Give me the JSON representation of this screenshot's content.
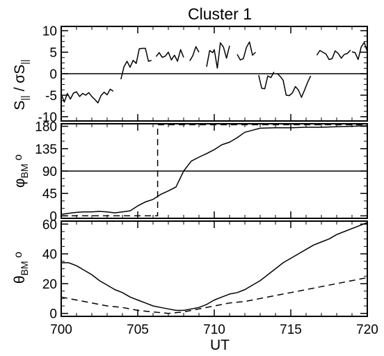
{
  "figure": {
    "title": "Cluster 1",
    "xlabel": "UT"
  },
  "chart_data": [
    {
      "type": "line",
      "panel": "top",
      "ylabel_parts": [
        "S",
        "||",
        " / σS",
        "||"
      ],
      "xlim": [
        700,
        720
      ],
      "ylim": [
        -11,
        11
      ],
      "yticks": [
        10,
        5,
        0,
        -5,
        -10
      ],
      "xticks": [],
      "series": [
        {
          "style": "solid",
          "segments": [
            [
              [
                700.0,
                -4.7
              ],
              [
                700.2,
                -6.6
              ],
              [
                700.4,
                -4.6
              ],
              [
                700.6,
                -5.9
              ],
              [
                700.8,
                -4.5
              ],
              [
                701.0,
                -4.2
              ],
              [
                701.2,
                -5.3
              ],
              [
                701.4,
                -4.6
              ],
              [
                701.6,
                -5.0
              ],
              [
                701.8,
                -4.4
              ],
              [
                702.0,
                -5.3
              ],
              [
                702.2,
                -6.0
              ],
              [
                702.4,
                -6.8
              ],
              [
                702.6,
                -5.1
              ],
              [
                702.8,
                -4.3
              ],
              [
                703.0,
                -4.9
              ],
              [
                703.2,
                -3.6
              ],
              [
                703.4,
                -4.1
              ]
            ],
            [
              [
                703.9,
                -1.3
              ],
              [
                704.1,
                1.6
              ],
              [
                704.3,
                2.9
              ],
              [
                704.5,
                1.5
              ],
              [
                704.7,
                3.1
              ],
              [
                704.9,
                2.4
              ],
              [
                705.1,
                5.8
              ],
              [
                705.3,
                5.9
              ],
              [
                705.5,
                5.9
              ],
              [
                705.7,
                2.9
              ],
              [
                705.9,
                3.1
              ]
            ],
            [
              [
                706.2,
                4.0
              ],
              [
                706.4,
                4.9
              ],
              [
                706.6,
                3.8
              ],
              [
                706.8,
                4.1
              ],
              [
                707.0,
                5.0
              ],
              [
                707.2,
                3.2
              ],
              [
                707.4,
                4.3
              ],
              [
                707.6,
                2.9
              ],
              [
                707.8,
                5.6
              ],
              [
                708.0,
                3.8
              ]
            ],
            [
              [
                708.4,
                3.0
              ],
              [
                708.6,
                4.2
              ],
              [
                708.8,
                6.3
              ],
              [
                709.0,
                5.0
              ]
            ],
            [
              [
                709.5,
                1.6
              ],
              [
                709.7,
                5.4
              ],
              [
                709.9,
                4.9
              ],
              [
                710.0,
                5.6
              ],
              [
                710.2,
                1.3
              ],
              [
                710.4,
                7.2
              ],
              [
                710.6,
                6.2
              ],
              [
                710.8,
                3.6
              ],
              [
                711.0,
                6.5
              ]
            ],
            [
              [
                711.5,
                4.5
              ],
              [
                711.7,
                3.2
              ],
              [
                711.9,
                3.5
              ],
              [
                712.1,
                6.1
              ],
              [
                712.3,
                7.4
              ],
              [
                712.5,
                4.3
              ],
              [
                712.7,
                5.0
              ]
            ],
            [
              [
                712.9,
                -0.3
              ],
              [
                713.1,
                -3.4
              ],
              [
                713.3,
                -3.5
              ],
              [
                713.5,
                -0.5
              ],
              [
                713.7,
                -0.9
              ],
              [
                713.9,
                0.4
              ]
            ],
            [
              [
                714.1,
                0.1
              ],
              [
                714.3,
                -0.6
              ],
              [
                714.5,
                -1.5
              ],
              [
                714.7,
                -5.0
              ],
              [
                714.9,
                -5.1
              ],
              [
                715.1,
                -4.5
              ],
              [
                715.3,
                -3.0
              ],
              [
                715.5,
                -3.8
              ],
              [
                715.7,
                -5.5
              ],
              [
                715.9,
                -3.8
              ],
              [
                716.1,
                -2.0
              ],
              [
                716.3,
                -0.5
              ]
            ],
            [
              [
                716.7,
                4.3
              ],
              [
                716.9,
                5.4
              ],
              [
                717.1,
                5.0
              ],
              [
                717.3,
                4.6
              ],
              [
                717.5,
                3.3
              ],
              [
                717.7,
                3.5
              ],
              [
                717.9,
                5.3
              ],
              [
                718.1,
                4.7
              ],
              [
                718.3,
                3.6
              ],
              [
                718.5,
                4.5
              ],
              [
                718.7,
                4.7
              ],
              [
                718.9,
                5.5
              ]
            ],
            [
              [
                719.0,
                5.1
              ],
              [
                719.2,
                4.9
              ],
              [
                719.4,
                3.3
              ],
              [
                719.6,
                6.2
              ],
              [
                719.8,
                7.3
              ],
              [
                720.0,
                5.1
              ]
            ]
          ]
        },
        {
          "style": "solid",
          "note": "zero reference line",
          "segments": [
            [
              [
                700,
                0
              ],
              [
                720,
                0
              ]
            ]
          ]
        }
      ]
    },
    {
      "type": "line",
      "panel": "middle",
      "ylabel_parts": [
        "φ",
        "BM",
        "  o"
      ],
      "xlim": [
        700,
        720
      ],
      "ylim": [
        -5,
        185
      ],
      "yticks": [
        180,
        135,
        90,
        45,
        0
      ],
      "xticks": [],
      "series": [
        {
          "style": "solid",
          "segments": [
            [
              [
                700.0,
                3
              ],
              [
                700.5,
                5
              ],
              [
                701.0,
                7
              ],
              [
                701.5,
                8
              ],
              [
                702.0,
                8
              ],
              [
                702.5,
                9
              ],
              [
                703.0,
                8
              ],
              [
                703.5,
                6
              ],
              [
                704.0,
                8
              ],
              [
                704.5,
                10
              ],
              [
                705.0,
                20
              ],
              [
                705.5,
                28
              ],
              [
                706.0,
                33
              ],
              [
                706.5,
                43
              ],
              [
                707.0,
                50
              ],
              [
                707.5,
                58
              ],
              [
                708.0,
                90
              ],
              [
                708.5,
                110
              ],
              [
                709.0,
                118
              ],
              [
                709.5,
                125
              ],
              [
                710.0,
                133
              ],
              [
                710.5,
                143
              ],
              [
                711.0,
                148
              ],
              [
                711.5,
                157
              ],
              [
                712.0,
                168
              ],
              [
                712.5,
                172
              ],
              [
                713.0,
                176
              ],
              [
                714.0,
                177
              ],
              [
                715.0,
                177
              ],
              [
                716.0,
                178
              ],
              [
                717.0,
                178
              ],
              [
                718.0,
                179
              ],
              [
                719.0,
                180
              ],
              [
                720.0,
                181
              ]
            ]
          ]
        },
        {
          "style": "dashed",
          "segments": [
            [
              [
                700.0,
                0
              ],
              [
                706.3,
                0
              ],
              [
                706.3,
                183
              ],
              [
                720.0,
                183
              ]
            ]
          ]
        },
        {
          "style": "solid",
          "note": "90 degree reference line",
          "segments": [
            [
              [
                700,
                90
              ],
              [
                720,
                90
              ]
            ]
          ]
        }
      ]
    },
    {
      "type": "line",
      "panel": "bottom",
      "ylabel_parts": [
        "θ",
        "BM",
        "  o"
      ],
      "xlim": [
        700,
        720
      ],
      "ylim": [
        -2,
        62
      ],
      "yticks": [
        60,
        40,
        20,
        0
      ],
      "xticks": [
        700,
        705,
        710,
        715,
        720
      ],
      "series": [
        {
          "style": "solid",
          "segments": [
            [
              [
                700.0,
                34
              ],
              [
                700.5,
                34
              ],
              [
                701.0,
                32
              ],
              [
                701.5,
                29
              ],
              [
                702.0,
                26
              ],
              [
                702.5,
                22
              ],
              [
                703.0,
                19
              ],
              [
                703.5,
                16
              ],
              [
                704.0,
                14
              ],
              [
                704.5,
                11
              ],
              [
                705.0,
                9
              ],
              [
                705.5,
                7
              ],
              [
                706.0,
                5
              ],
              [
                706.5,
                4
              ],
              [
                707.0,
                3
              ],
              [
                707.5,
                2
              ],
              [
                708.0,
                2
              ],
              [
                708.5,
                3
              ],
              [
                709.0,
                4
              ],
              [
                709.5,
                6
              ],
              [
                710.0,
                9
              ],
              [
                710.5,
                11
              ],
              [
                711.0,
                13
              ],
              [
                711.5,
                14
              ],
              [
                712.0,
                16
              ],
              [
                712.5,
                19
              ],
              [
                713.0,
                22
              ],
              [
                713.5,
                26
              ],
              [
                714.0,
                30
              ],
              [
                714.5,
                34
              ],
              [
                715.0,
                37
              ],
              [
                715.5,
                40
              ],
              [
                716.0,
                43
              ],
              [
                716.5,
                46
              ],
              [
                717.0,
                48
              ],
              [
                717.5,
                50
              ],
              [
                718.0,
                53
              ],
              [
                718.5,
                55
              ],
              [
                719.0,
                57
              ],
              [
                719.5,
                59
              ],
              [
                720.0,
                61
              ]
            ]
          ]
        },
        {
          "style": "dashed",
          "segments": [
            [
              [
                700.0,
                11
              ],
              [
                701.0,
                9
              ],
              [
                702.0,
                7
              ],
              [
                703.0,
                5
              ],
              [
                704.0,
                4
              ],
              [
                705.0,
                2
              ],
              [
                706.0,
                1
              ],
              [
                707.0,
                0
              ],
              [
                708.0,
                1
              ],
              [
                709.0,
                3
              ],
              [
                710.0,
                5
              ],
              [
                711.0,
                7
              ],
              [
                712.0,
                8
              ],
              [
                713.0,
                10
              ],
              [
                714.0,
                12
              ],
              [
                715.0,
                14
              ],
              [
                716.0,
                16
              ],
              [
                717.0,
                18
              ],
              [
                718.0,
                20
              ],
              [
                719.0,
                22
              ],
              [
                720.0,
                24
              ]
            ]
          ]
        }
      ]
    }
  ]
}
